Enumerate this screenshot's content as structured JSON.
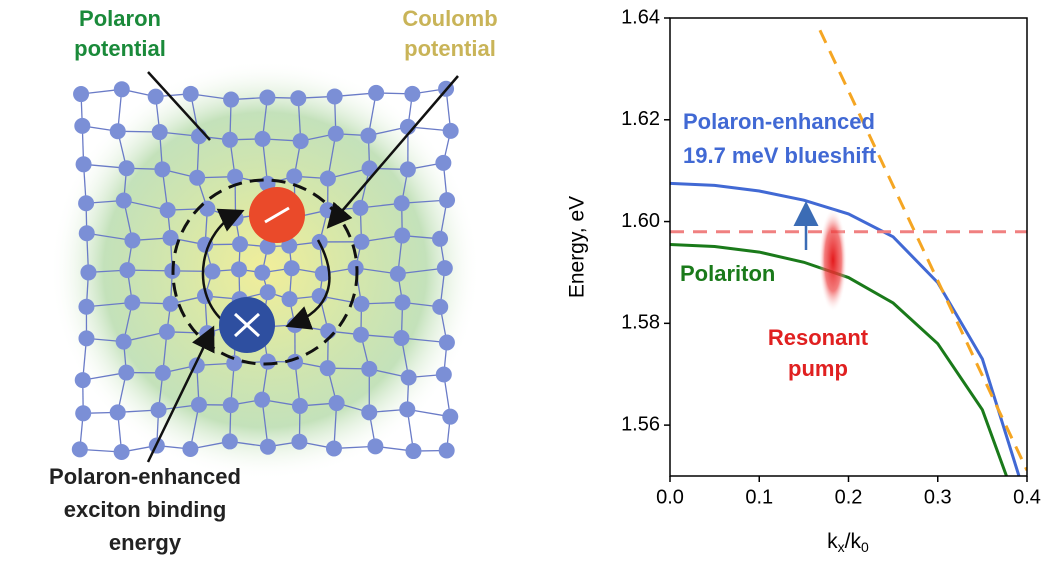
{
  "diagram": {
    "polaron_label": [
      "Polaron",
      "potential"
    ],
    "coulomb_label": [
      "Coulomb",
      "potential"
    ],
    "binding_label": [
      "Polaron-enhanced",
      "exciton binding",
      "energy"
    ]
  },
  "chart_data": {
    "type": "line",
    "ylabel": "Energy, eV",
    "xlabel": [
      "k",
      "x",
      "/k",
      "0"
    ],
    "xlim": [
      0,
      0.4
    ],
    "ylim": [
      1.55,
      1.64
    ],
    "xticks": [
      {
        "value": 0,
        "label": "0.0"
      },
      0.1,
      0.2,
      0.3,
      0.4
    ],
    "yticks": [
      1.56,
      1.58,
      {
        "value": 1.6,
        "label": "1.60"
      },
      1.62,
      1.64
    ],
    "series": [
      {
        "name": "Polaron-enhanced",
        "color": "#4169d4",
        "dash": false,
        "x": [
          0,
          0.05,
          0.1,
          0.15,
          0.2,
          0.25,
          0.3,
          0.35,
          0.391
        ],
        "values": [
          1.6075,
          1.6071,
          1.606,
          1.6042,
          1.6015,
          1.597,
          1.588,
          1.573,
          1.55
        ]
      },
      {
        "name": "Polariton",
        "color": "#1a7a1a",
        "dash": false,
        "x": [
          0,
          0.05,
          0.1,
          0.15,
          0.2,
          0.25,
          0.3,
          0.35,
          0.377
        ],
        "values": [
          1.5955,
          1.5951,
          1.594,
          1.592,
          1.589,
          1.584,
          1.576,
          1.563,
          1.55
        ]
      },
      {
        "color": "#f5a623",
        "dash": true,
        "x": [
          0.168,
          0.4
        ],
        "values": [
          1.6376,
          1.5511
        ]
      },
      {
        "color": "#f08080",
        "dash": true,
        "x": [
          0,
          0.4
        ],
        "values": [
          1.598,
          1.598
        ]
      }
    ],
    "annotations": {
      "blueshift": [
        "Polaron-enhanced",
        "19.7 meV blueshift"
      ],
      "polariton": "Polariton",
      "pump": [
        "Resonant",
        "pump"
      ]
    }
  }
}
